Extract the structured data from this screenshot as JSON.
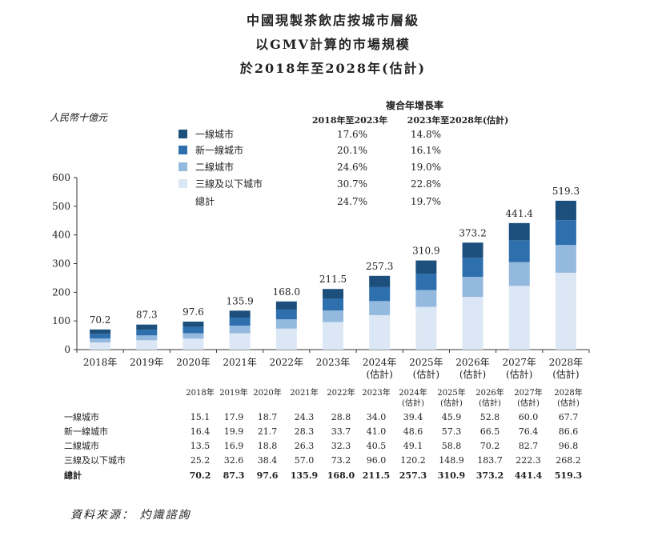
{
  "title_lines": [
    "中國現製茶飲店按城市層級",
    "以GMV計算的市場規模",
    "於2018年至2028年(估計)"
  ],
  "unit_label": "人民幣十億元",
  "source": "資料來源： 灼識諮詢",
  "cagr": {
    "header": "複合年增長率",
    "col1": "2018年至2023年",
    "col2": "2023年至2028年(估計)",
    "total_label": "總計",
    "total": [
      "24.7%",
      "19.7%"
    ]
  },
  "colors": {
    "tier1": "#1c4f7c",
    "newtier1": "#2e6fae",
    "tier2": "#93b9de",
    "tier3": "#dbe7f4"
  },
  "chart_data": {
    "type": "bar",
    "stacked": true,
    "categories": [
      "2018年",
      "2019年",
      "2020年",
      "2021年",
      "2022年",
      "2023年",
      "2024年(估計)",
      "2025年(估計)",
      "2026年(估計)",
      "2027年(估計)",
      "2028年(估計)"
    ],
    "ylim": [
      0,
      600
    ],
    "yticks": [
      0,
      100,
      200,
      300,
      400,
      500,
      600
    ],
    "series": [
      {
        "name": "一線城市",
        "color": "#1c4f7c",
        "cagr": [
          "17.6%",
          "14.8%"
        ],
        "values": [
          15.1,
          17.9,
          18.7,
          24.3,
          28.8,
          34.0,
          39.4,
          45.9,
          52.8,
          60.0,
          67.7
        ]
      },
      {
        "name": "新一線城市",
        "color": "#2e6fae",
        "cagr": [
          "20.1%",
          "16.1%"
        ],
        "values": [
          16.4,
          19.9,
          21.7,
          28.3,
          33.7,
          41.0,
          48.6,
          57.3,
          66.5,
          76.4,
          86.6
        ]
      },
      {
        "name": "二線城市",
        "color": "#93b9de",
        "cagr": [
          "24.6%",
          "19.0%"
        ],
        "values": [
          13.5,
          16.9,
          18.8,
          26.3,
          32.3,
          40.5,
          49.1,
          58.8,
          70.2,
          82.7,
          96.8
        ]
      },
      {
        "name": "三線及以下城市",
        "color": "#dbe7f4",
        "cagr": [
          "30.7%",
          "22.8%"
        ],
        "values": [
          25.2,
          32.6,
          38.4,
          57.0,
          73.2,
          96.0,
          120.2,
          148.9,
          183.7,
          222.3,
          268.2
        ]
      }
    ],
    "totals": [
      70.2,
      87.3,
      97.6,
      135.9,
      168.0,
      211.5,
      257.3,
      310.9,
      373.2,
      441.4,
      519.3
    ],
    "table": {
      "row_labels": [
        "一線城市",
        "新一線城市",
        "二線城市",
        "三線及以下城市",
        "總計"
      ],
      "col_headers": [
        "2018年",
        "2019年",
        "2020年",
        "2021年",
        "2022年",
        "2023年",
        "2024年(估計)",
        "2025年(估計)",
        "2026年(估計)",
        "2027年(估計)",
        "2028年(估計)"
      ],
      "rows": [
        [
          "15.1",
          "17.9",
          "18.7",
          "24.3",
          "28.8",
          "34.0",
          "39.4",
          "45.9",
          "52.8",
          "60.0",
          "67.7"
        ],
        [
          "16.4",
          "19.9",
          "21.7",
          "28.3",
          "33.7",
          "41.0",
          "48.6",
          "57.3",
          "66.5",
          "76.4",
          "86.6"
        ],
        [
          "13.5",
          "16.9",
          "18.8",
          "26.3",
          "32.3",
          "40.5",
          "49.1",
          "58.8",
          "70.2",
          "82.7",
          "96.8"
        ],
        [
          "25.2",
          "32.6",
          "38.4",
          "57.0",
          "73.2",
          "96.0",
          "120.2",
          "148.9",
          "183.7",
          "222.3",
          "268.2"
        ],
        [
          "70.2",
          "87.3",
          "97.6",
          "135.9",
          "168.0",
          "211.5",
          "257.3",
          "310.9",
          "373.2",
          "441.4",
          "519.3"
        ]
      ]
    }
  }
}
